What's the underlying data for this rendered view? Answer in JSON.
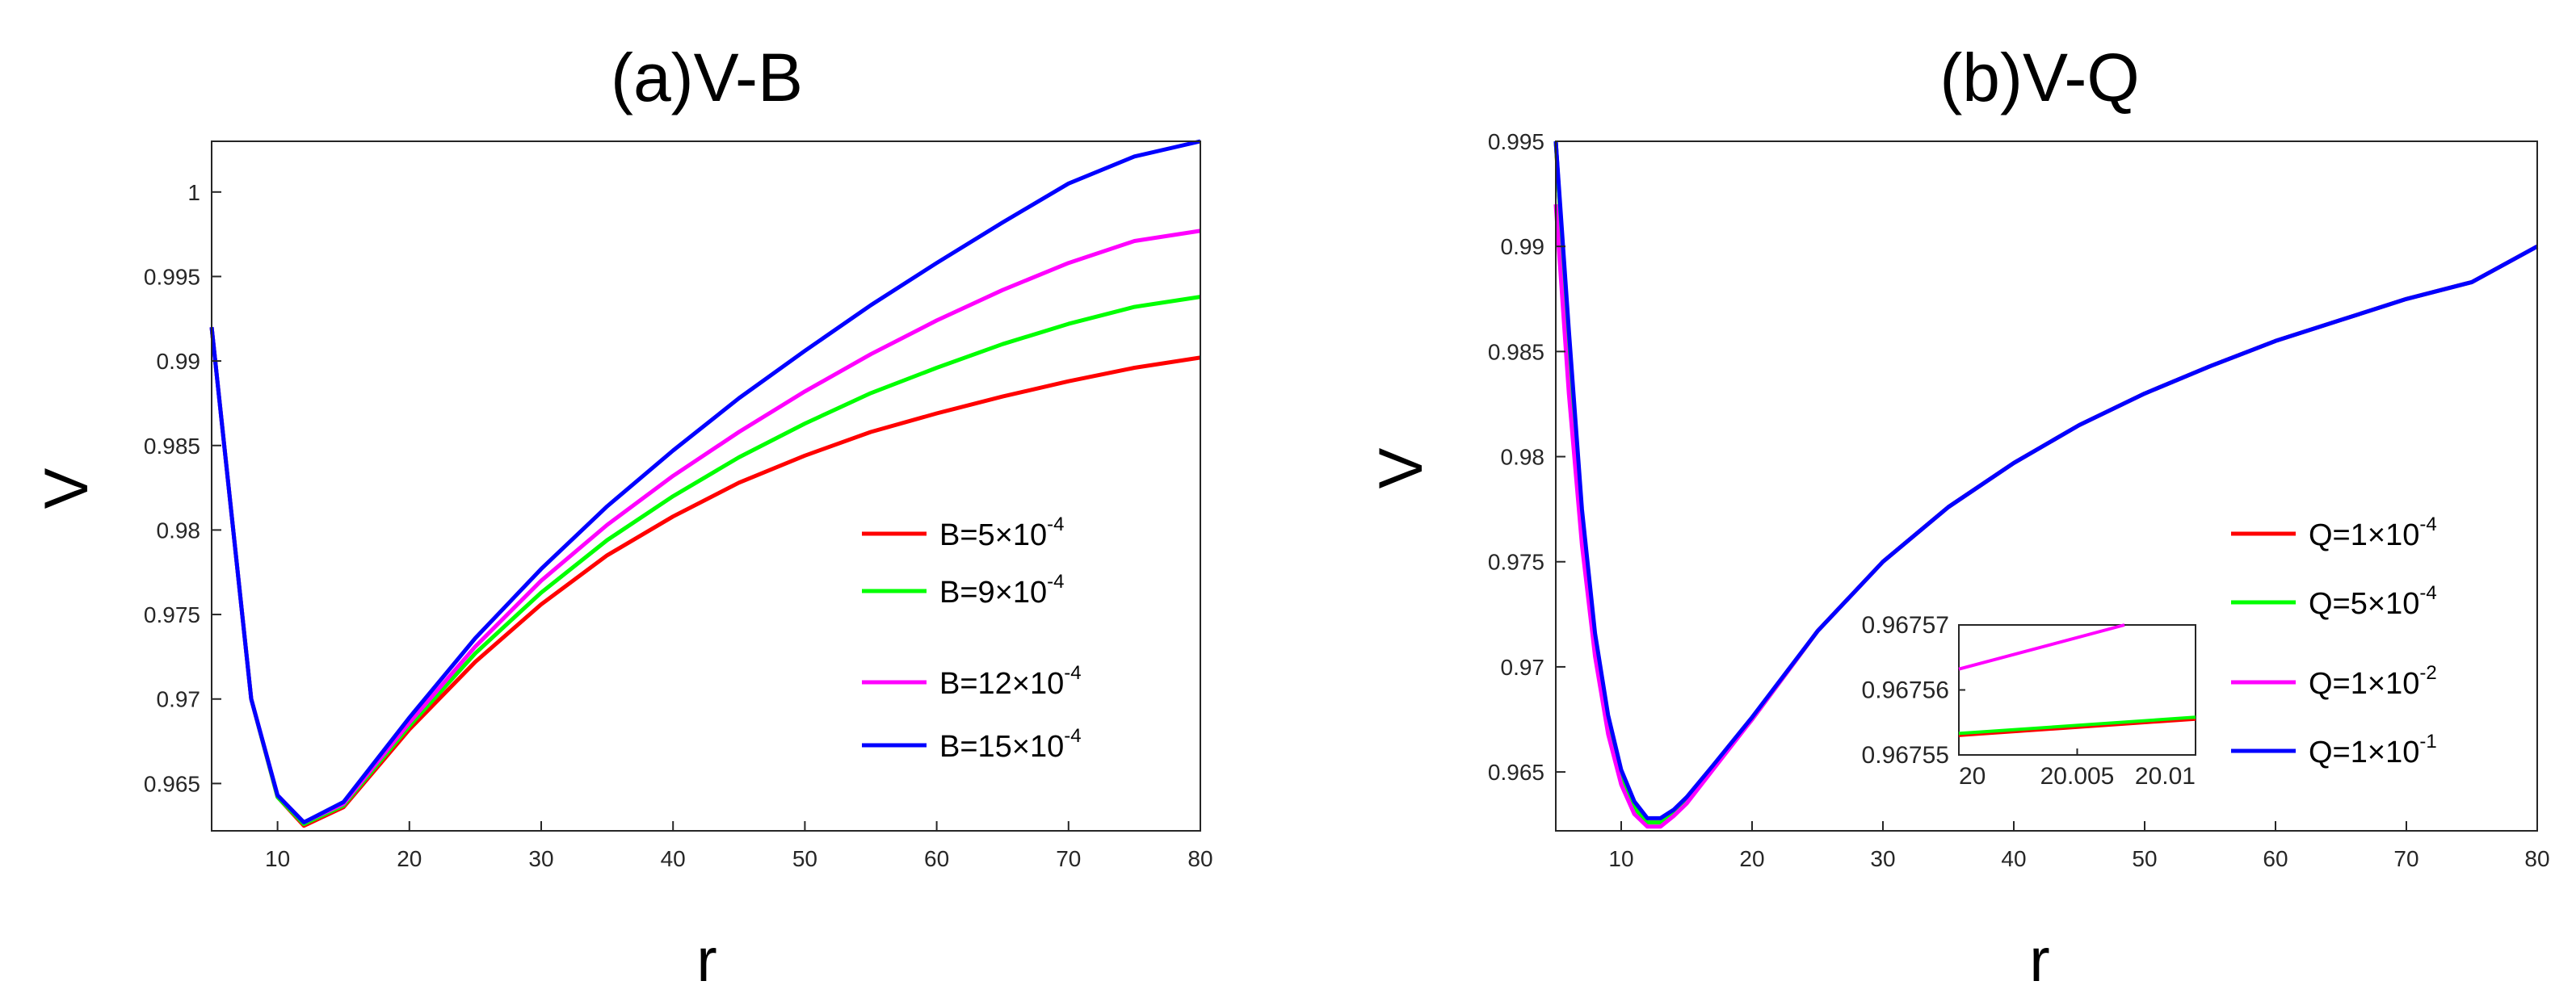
{
  "chart_data": [
    {
      "type": "line",
      "title": "(a)V-B",
      "xlabel": "r",
      "ylabel": "V",
      "xlim": [
        5,
        80
      ],
      "ylim": [
        0.9622,
        1.003
      ],
      "xticks": [
        10,
        20,
        30,
        40,
        50,
        60,
        70,
        80
      ],
      "yticks": [
        0.965,
        0.97,
        0.975,
        0.98,
        0.985,
        0.99,
        0.995,
        1
      ],
      "yticklabels": [
        "0.965",
        "0.97",
        "0.975",
        "0.98",
        "0.985",
        "0.99",
        "0.995",
        "1"
      ],
      "legend_position": "bottom-right",
      "grid": false,
      "series": [
        {
          "name": "B=5×10",
          "exp": "-4",
          "color": "#ff0000",
          "x": [
            5,
            8,
            10,
            12,
            15,
            20,
            25,
            30,
            35,
            40,
            45,
            50,
            55,
            60,
            65,
            70,
            75,
            80
          ],
          "values": [
            0.992,
            0.97,
            0.9642,
            0.9625,
            0.9636,
            0.9682,
            0.9722,
            0.9756,
            0.9785,
            0.9808,
            0.9828,
            0.9844,
            0.9858,
            0.9869,
            0.9879,
            0.9888,
            0.9896,
            0.9902
          ]
        },
        {
          "name": "B=9×10",
          "exp": "-4",
          "color": "#00ff00",
          "x": [
            5,
            8,
            10,
            12,
            15,
            20,
            25,
            30,
            35,
            40,
            45,
            50,
            55,
            60,
            65,
            70,
            75,
            80
          ],
          "values": [
            0.992,
            0.97,
            0.9642,
            0.9626,
            0.9637,
            0.9684,
            0.9727,
            0.9763,
            0.9794,
            0.982,
            0.9843,
            0.9863,
            0.9881,
            0.9896,
            0.991,
            0.9922,
            0.9932,
            0.9938
          ]
        },
        {
          "name": "B=12×10",
          "exp": "-4",
          "color": "#ff00ff",
          "x": [
            5,
            8,
            10,
            12,
            15,
            20,
            25,
            30,
            35,
            40,
            45,
            50,
            55,
            60,
            65,
            70,
            75,
            80
          ],
          "values": [
            0.992,
            0.97,
            0.9643,
            0.9627,
            0.9638,
            0.9686,
            0.9731,
            0.977,
            0.9803,
            0.9832,
            0.9858,
            0.9882,
            0.9904,
            0.9924,
            0.9942,
            0.9958,
            0.9971,
            0.9977
          ]
        },
        {
          "name": "B=15×10",
          "exp": "-4",
          "color": "#0000ff",
          "x": [
            5,
            8,
            10,
            12,
            15,
            20,
            25,
            30,
            35,
            40,
            45,
            50,
            55,
            60,
            65,
            70,
            75,
            80
          ],
          "values": [
            0.992,
            0.97,
            0.9643,
            0.9627,
            0.9639,
            0.9689,
            0.9736,
            0.9777,
            0.9814,
            0.9847,
            0.9878,
            0.9906,
            0.9933,
            0.9958,
            0.9982,
            1.0005,
            1.0021,
            1.003
          ]
        }
      ]
    },
    {
      "type": "line",
      "title": "(b)V-Q",
      "xlabel": "r",
      "ylabel": "V",
      "xlim": [
        5,
        80
      ],
      "ylim": [
        0.9622,
        0.995
      ],
      "xticks": [
        10,
        20,
        30,
        40,
        50,
        60,
        70,
        80
      ],
      "yticks": [
        0.965,
        0.97,
        0.975,
        0.98,
        0.985,
        0.99,
        0.995
      ],
      "yticklabels": [
        "0.965",
        "0.97",
        "0.975",
        "0.98",
        "0.985",
        "0.99",
        "0.995"
      ],
      "legend_position": "bottom-right",
      "grid": false,
      "series": [
        {
          "name": "Q=1×10",
          "exp": "-4",
          "color": "#ff0000",
          "x": [
            5,
            6,
            7,
            8,
            9,
            10,
            11,
            12,
            13,
            14,
            15,
            17,
            20,
            25,
            30,
            35,
            40,
            45,
            50,
            55,
            60,
            65,
            70,
            75,
            80
          ],
          "values": [
            0.995,
            0.985,
            0.977,
            0.9712,
            0.9674,
            0.9648,
            0.9633,
            0.9626,
            0.9626,
            0.963,
            0.9636,
            0.9652,
            0.9675,
            0.9717,
            0.975,
            0.9776,
            0.9797,
            0.9815,
            0.983,
            0.9843,
            0.9855,
            0.9865,
            0.9875,
            0.9883,
            0.99
          ]
        },
        {
          "name": "Q=5×10",
          "exp": "-4",
          "color": "#00ff00",
          "x": [
            5,
            6,
            7,
            8,
            9,
            10,
            11,
            12,
            13,
            14,
            15,
            17,
            20,
            25,
            30,
            35,
            40,
            45,
            50,
            55,
            60,
            65,
            70,
            75,
            80
          ],
          "values": [
            0.995,
            0.985,
            0.977,
            0.9712,
            0.9674,
            0.9648,
            0.9633,
            0.9626,
            0.9626,
            0.963,
            0.9636,
            0.9652,
            0.9675,
            0.9717,
            0.975,
            0.9776,
            0.9797,
            0.9815,
            0.983,
            0.9843,
            0.9855,
            0.9865,
            0.9875,
            0.9883,
            0.99
          ]
        },
        {
          "name": "Q=1×10",
          "exp": "-2",
          "color": "#ff00ff",
          "x": [
            5,
            6,
            7,
            8,
            9,
            10,
            11,
            12,
            13,
            14,
            15,
            17,
            20,
            25,
            30,
            35,
            40,
            45,
            50,
            55,
            60,
            65,
            70,
            75,
            80
          ],
          "values": [
            0.992,
            0.983,
            0.9758,
            0.9705,
            0.9668,
            0.9644,
            0.963,
            0.9624,
            0.9624,
            0.9629,
            0.9635,
            0.9651,
            0.9675,
            0.9717,
            0.975,
            0.9776,
            0.9797,
            0.9815,
            0.983,
            0.9843,
            0.9855,
            0.9865,
            0.9875,
            0.9883,
            0.99
          ]
        },
        {
          "name": "Q=1×10",
          "exp": "-1",
          "color": "#0000ff",
          "x": [
            5,
            6,
            7,
            8,
            9,
            10,
            11,
            12,
            13,
            14,
            15,
            17,
            20,
            25,
            30,
            35,
            40,
            45,
            50,
            55,
            60,
            65,
            70,
            75,
            80
          ],
          "values": [
            0.995,
            0.986,
            0.9775,
            0.9716,
            0.9677,
            0.9651,
            0.9636,
            0.9628,
            0.9628,
            0.9632,
            0.9638,
            0.9653,
            0.9676,
            0.9717,
            0.975,
            0.9776,
            0.9797,
            0.9815,
            0.983,
            0.9843,
            0.9855,
            0.9865,
            0.9875,
            0.9883,
            0.99
          ]
        }
      ],
      "inset": {
        "xlim": [
          20,
          20.01
        ],
        "ylim": [
          0.96755,
          0.96757
        ],
        "xticks": [
          20,
          20.005,
          20.01
        ],
        "xticklabels": [
          "20",
          "20.005",
          "20.01"
        ],
        "yticks": [
          0.96755,
          0.96756,
          0.96757
        ],
        "yticklabels": [
          "0.96755",
          "0.96756",
          "0.96757"
        ],
        "series": [
          {
            "color": "#ff0000",
            "x": [
              20,
              20.01
            ],
            "values": [
              0.967553,
              0.9675555
            ]
          },
          {
            "color": "#00ff00",
            "x": [
              20,
              20.01
            ],
            "values": [
              0.9675533,
              0.9675558
            ]
          },
          {
            "color": "#ff00ff",
            "x": [
              20,
              20.007
            ],
            "values": [
              0.9675632,
              0.96757
            ]
          }
        ]
      }
    }
  ]
}
